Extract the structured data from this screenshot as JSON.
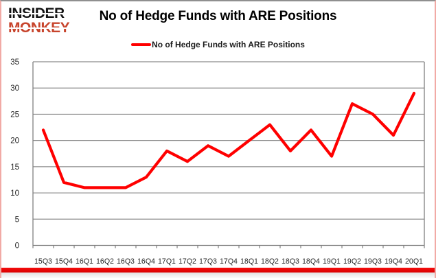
{
  "logo": {
    "line1": "INSIDER",
    "line2": "MONKEY"
  },
  "title": "No of Hedge Funds with ARE Positions",
  "legend": {
    "label": "No of Hedge Funds with ARE Positions"
  },
  "colors": {
    "line": "#ff0000",
    "logo_accent": "#c7432b",
    "grid": "#8c8c8c",
    "axis": "#7f7f7f",
    "tick_label": "#262626",
    "bottom_bar": "#f50d0d"
  },
  "chart_data": {
    "type": "line",
    "title": "No of Hedge Funds with ARE Positions",
    "categories": [
      "15Q3",
      "15Q4",
      "16Q1",
      "16Q2",
      "16Q3",
      "16Q4",
      "17Q1",
      "17Q2",
      "17Q3",
      "17Q4",
      "18Q1",
      "18Q2",
      "18Q3",
      "18Q4",
      "19Q1",
      "19Q2",
      "19Q3",
      "19Q4",
      "20Q1"
    ],
    "series": [
      {
        "name": "No of Hedge Funds with ARE Positions",
        "color": "#ff0000",
        "values": [
          22,
          12,
          11,
          11,
          11,
          13,
          18,
          16,
          19,
          17,
          20,
          23,
          18,
          22,
          17,
          27,
          25,
          21,
          29
        ]
      }
    ],
    "xlabel": "",
    "ylabel": "",
    "ylim": [
      0,
      35
    ],
    "yticks": [
      0,
      5,
      10,
      15,
      20,
      25,
      30,
      35
    ],
    "grid": true,
    "legend_position": "top"
  }
}
